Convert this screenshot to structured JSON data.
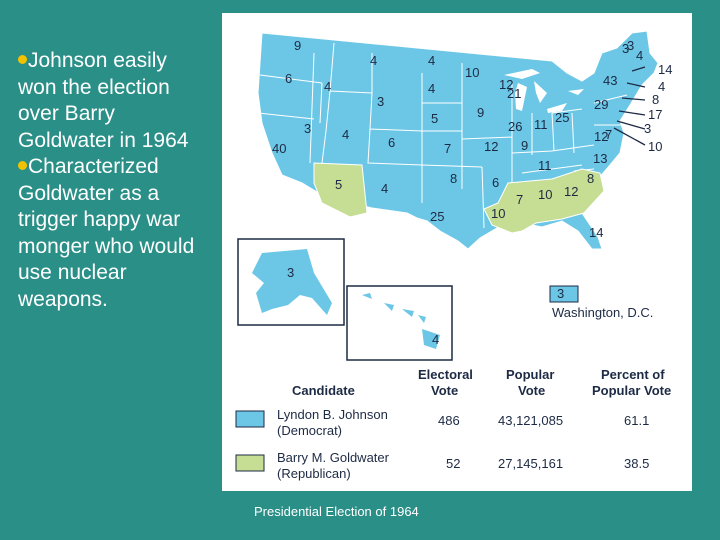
{
  "bullets": [
    {
      "text": "Johnson easily won the election over Barry Goldwater in 1964"
    },
    {
      "text": "Characterized Goldwater as a trigger happy war monger who would use nuclear weapons."
    }
  ],
  "caption": "Presidential Election of 1964",
  "map": {
    "colors": {
      "johnson": "#6cc7e6",
      "goldwater": "#c6dd94",
      "border": "#ffffff",
      "text": "#1d2a44"
    },
    "electoral_votes": [
      "9",
      "4",
      "4",
      "4",
      "6",
      "4",
      "3",
      "10",
      "12",
      "21",
      "3",
      "43",
      "14",
      "4",
      "8",
      "17",
      "3",
      "10",
      "4",
      "3",
      "5",
      "9",
      "26",
      "11",
      "25",
      "29",
      "7",
      "12",
      "40",
      "3",
      "4",
      "6",
      "7",
      "12",
      "9",
      "13",
      "11",
      "5",
      "4",
      "8",
      "6",
      "7",
      "10",
      "12",
      "8",
      "25",
      "10",
      "14",
      "3",
      "4"
    ],
    "dc_value": "3",
    "dc_label": "Washington, D.C."
  },
  "legend": {
    "headers": {
      "candidate": "Candidate",
      "electoral": "Electoral Vote",
      "popular": "Popular Vote",
      "percent": "Percent of Popular Vote"
    },
    "rows": [
      {
        "name": "Lyndon B. Johnson",
        "party": "(Democrat)",
        "electoral": "486",
        "popular": "43,121,085",
        "percent": "61.1"
      },
      {
        "name": "Barry M. Goldwater",
        "party": "(Republican)",
        "electoral": "52",
        "popular": "27,145,161",
        "percent": "38.5"
      }
    ]
  }
}
